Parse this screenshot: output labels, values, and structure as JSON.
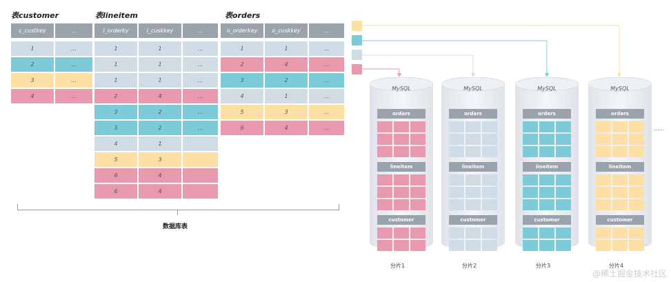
{
  "colors": {
    "header": "#9aa3ad",
    "gray": "#cfdbe5",
    "cyan": "#7dcad8",
    "yellow": "#fbdfa4",
    "pink": "#e899ad"
  },
  "customer": {
    "title": "表customer",
    "headers": [
      "c_custkey",
      "..."
    ],
    "rows": [
      [
        "1",
        "...",
        "gray"
      ],
      [
        "2",
        "...",
        "cyan"
      ],
      [
        "3",
        "...",
        "yellow"
      ],
      [
        "4",
        "...",
        "pink"
      ]
    ]
  },
  "lineitem": {
    "title": "表lineitem",
    "headers": [
      "l_orderky",
      "l_cuskkey",
      "..."
    ],
    "rows": [
      [
        "1",
        "1",
        "...",
        "gray"
      ],
      [
        "1",
        "1",
        "...",
        "gray"
      ],
      [
        "1",
        "1",
        "...",
        "gray"
      ],
      [
        "2",
        "4",
        "...",
        "pink"
      ],
      [
        "3",
        "2",
        "...",
        "cyan"
      ],
      [
        "3",
        "2",
        "...",
        "cyan"
      ],
      [
        "4",
        "1",
        "",
        "gray"
      ],
      [
        "5",
        "3",
        "",
        "yellow"
      ],
      [
        "6",
        "4",
        "",
        "pink"
      ],
      [
        "6",
        "4",
        "",
        "pink"
      ]
    ]
  },
  "orders": {
    "title": "表orders",
    "headers": [
      "o_orderkey",
      "o_cuskkey",
      "..."
    ],
    "rows": [
      [
        "1",
        "1",
        "...",
        "gray"
      ],
      [
        "2",
        "4",
        "...",
        "pink"
      ],
      [
        "3",
        "2",
        "...",
        "cyan"
      ],
      [
        "4",
        "1",
        "...",
        "gray"
      ],
      [
        "5",
        "3",
        "...",
        "yellow"
      ],
      [
        "6",
        "4",
        "...",
        "pink"
      ]
    ]
  },
  "brace_caption": "数据库表",
  "legend": [
    "yellow",
    "cyan",
    "gray",
    "pink"
  ],
  "shards": [
    {
      "db": "MySQL",
      "color": "pink",
      "label": "分片1",
      "sections": [
        "orders",
        "lineitem",
        "customer"
      ]
    },
    {
      "db": "MySQL",
      "color": "gray",
      "label": "分片2",
      "sections": [
        "orders",
        "lineitem",
        "customer"
      ]
    },
    {
      "db": "MySQL",
      "color": "cyan",
      "label": "分片3",
      "sections": [
        "orders",
        "lineitem",
        "customer"
      ]
    },
    {
      "db": "MySQL",
      "color": "yellow",
      "label": "分片4",
      "sections": [
        "orders",
        "lineitem",
        "customer"
      ]
    }
  ],
  "ellipsis": "......",
  "watermark": "@稀土掘金技术社区"
}
